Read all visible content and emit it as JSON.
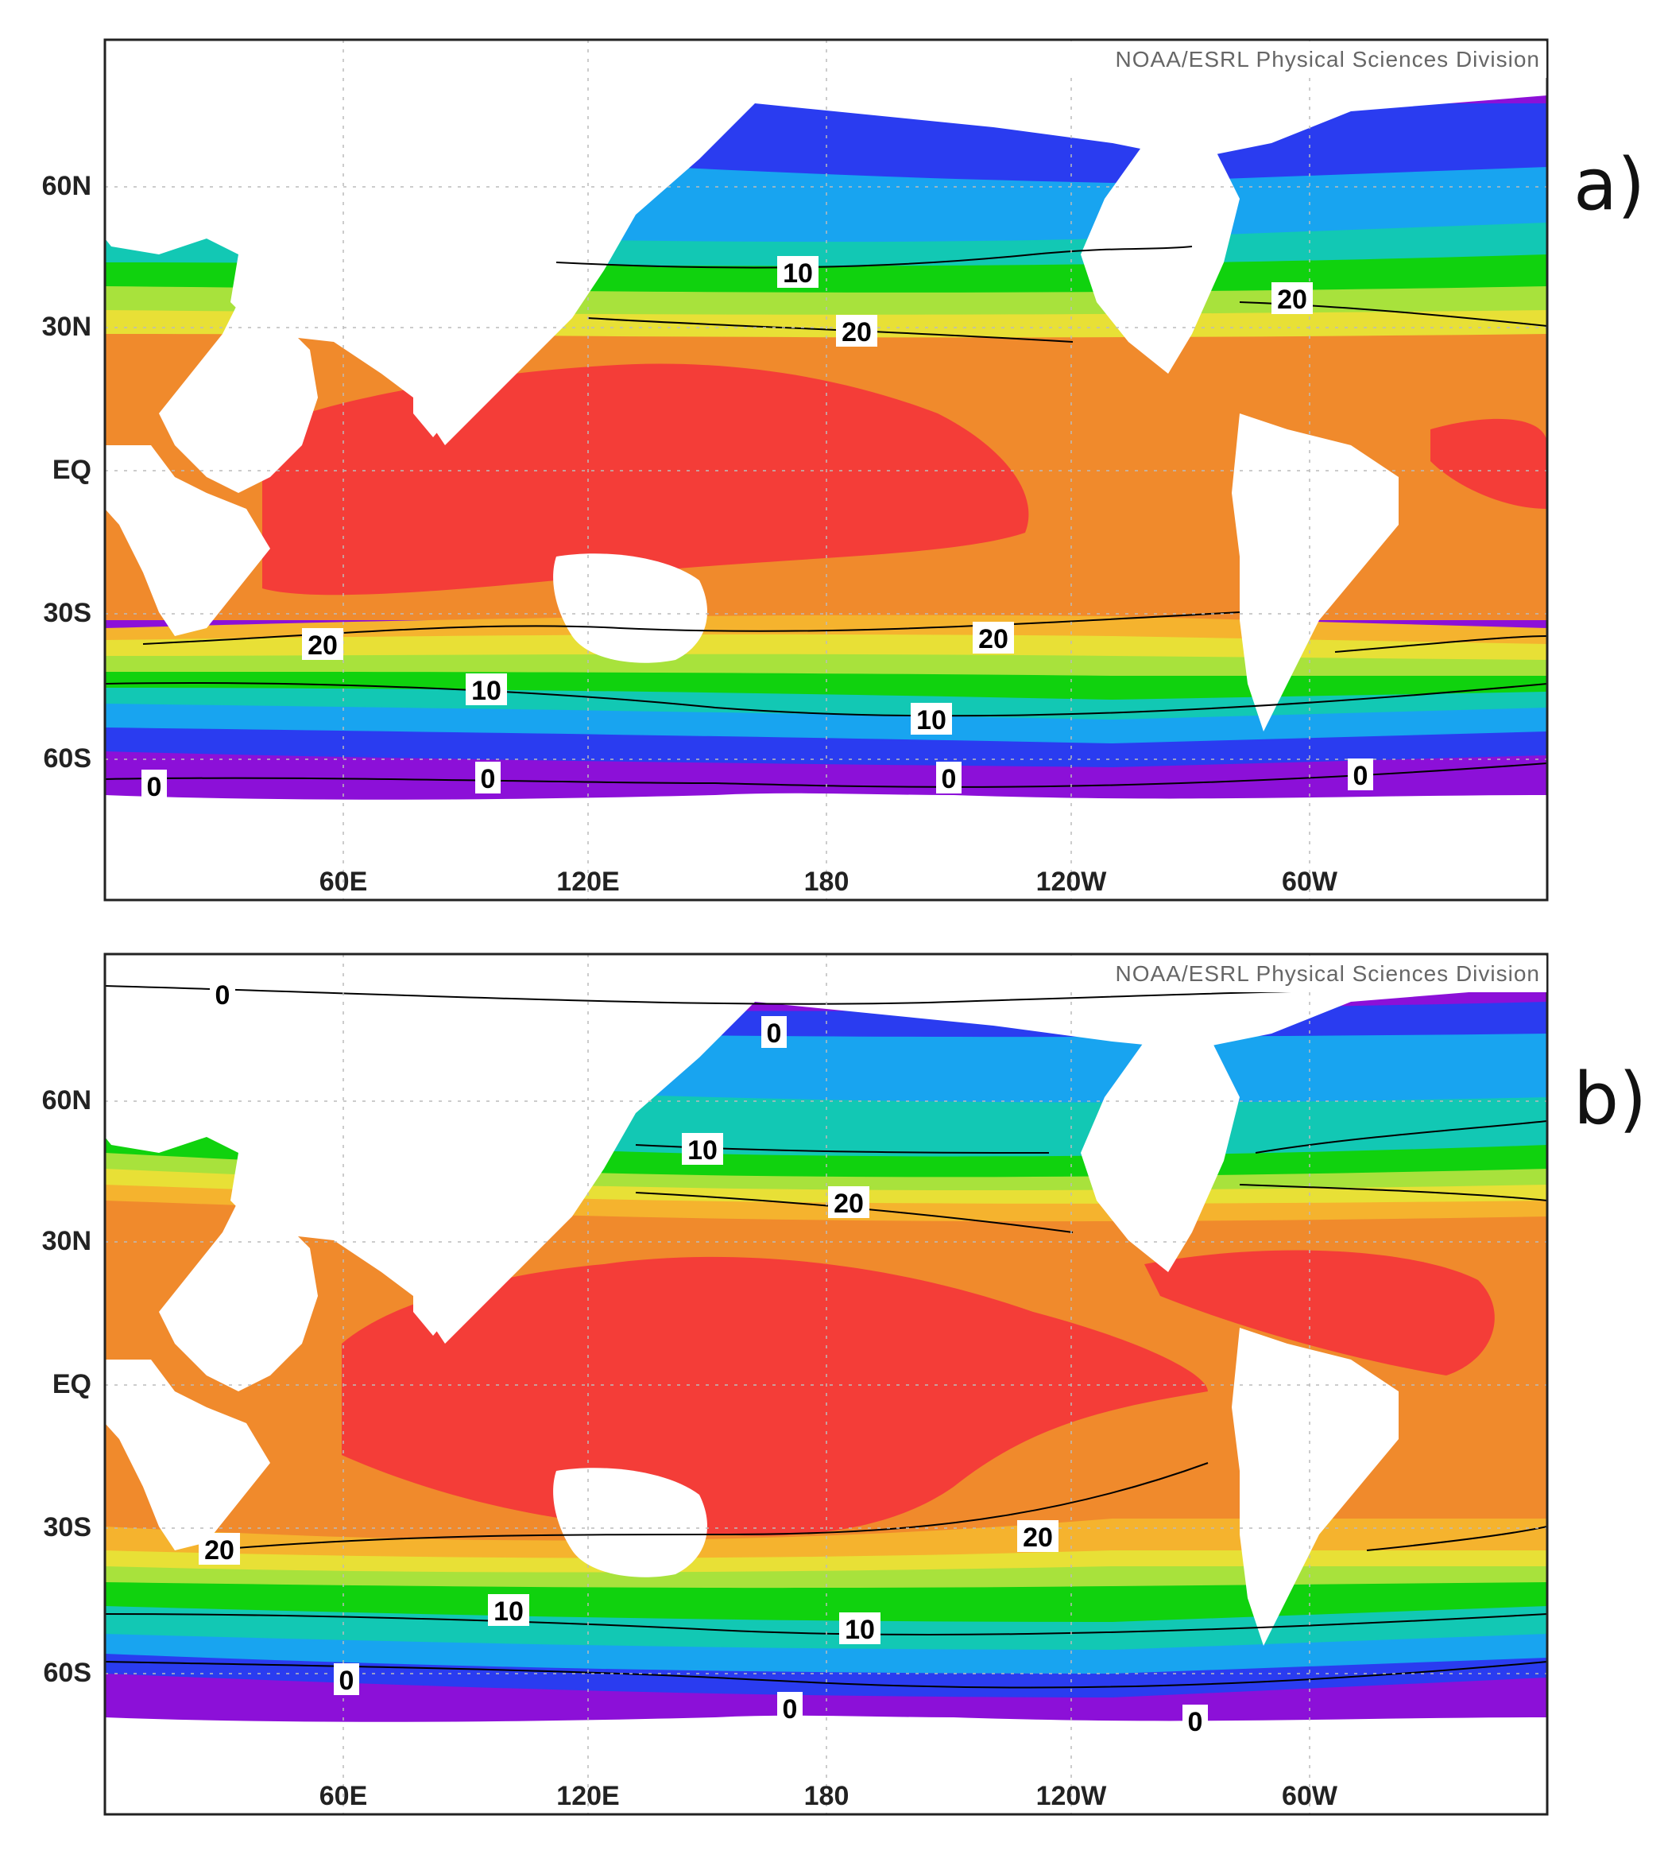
{
  "credit": "NOAA/ESRL Physical Sciences Division",
  "lat_labels": [
    "60N",
    "30N",
    "EQ",
    "30S",
    "60S"
  ],
  "lon_labels": [
    "60E",
    "120E",
    "180",
    "120W",
    "60W"
  ],
  "palette": {
    "cold": "#8c10d8",
    "blue": "#2a3cf0",
    "sky": "#18a4f0",
    "teal": "#12c8b4",
    "green": "#10d20e",
    "lime": "#a8e23c",
    "yellow": "#e8e036",
    "amber": "#f5b32e",
    "orange": "#f08a2c",
    "red": "#f43d38",
    "land": "#ffffff",
    "contour": "#000000"
  },
  "panels": [
    {
      "id": "a",
      "label": "a)",
      "contour_labels": [
        "10",
        "20",
        "20",
        "20",
        "20",
        "10",
        "10",
        "0",
        "0",
        "0",
        "0"
      ]
    },
    {
      "id": "b",
      "label": "b)",
      "contour_labels": [
        "0",
        "0",
        "10",
        "20",
        "20",
        "20",
        "10",
        "10",
        "0",
        "0",
        "0"
      ]
    }
  ]
}
